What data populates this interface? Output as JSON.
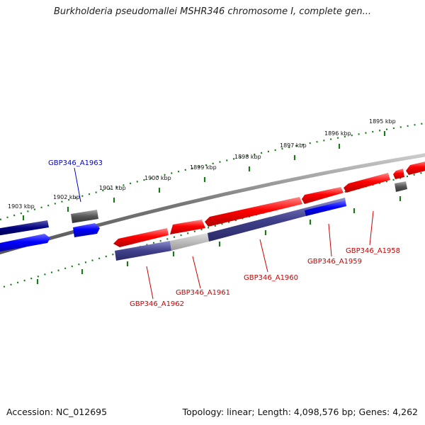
{
  "title": "Burkholderia pseudomallei MSHR346 chromosome I, complete gen...",
  "footer": {
    "accession": "Accession: NC_012695",
    "topology": "Topology: linear; Length: 4,098,576 bp; Genes: 4,262"
  },
  "ticks": [
    "1903 kbp",
    "1902 kbp",
    "1901 kbp",
    "1900 kbp",
    "1899 kbp",
    "1898 kbp",
    "1897 kbp",
    "1896 kbp",
    "1895 kbp"
  ],
  "genes": [
    {
      "name": "GBP346_A1963",
      "color": "#0000cc"
    },
    {
      "name": "GBP346_A1962",
      "color": "#cc0000"
    },
    {
      "name": "GBP346_A1961",
      "color": "#cc0000"
    },
    {
      "name": "GBP346_A1960",
      "color": "#cc0000"
    },
    {
      "name": "GBP346_A1959",
      "color": "#cc0000"
    },
    {
      "name": "GBP346_A1958",
      "color": "#cc0000"
    }
  ],
  "colors": {
    "forward": "#ff0000",
    "reverse": "#0000ff",
    "dark": "#000080",
    "grey": "#555555",
    "track": "#777777",
    "tick": "#1a7a1a"
  }
}
